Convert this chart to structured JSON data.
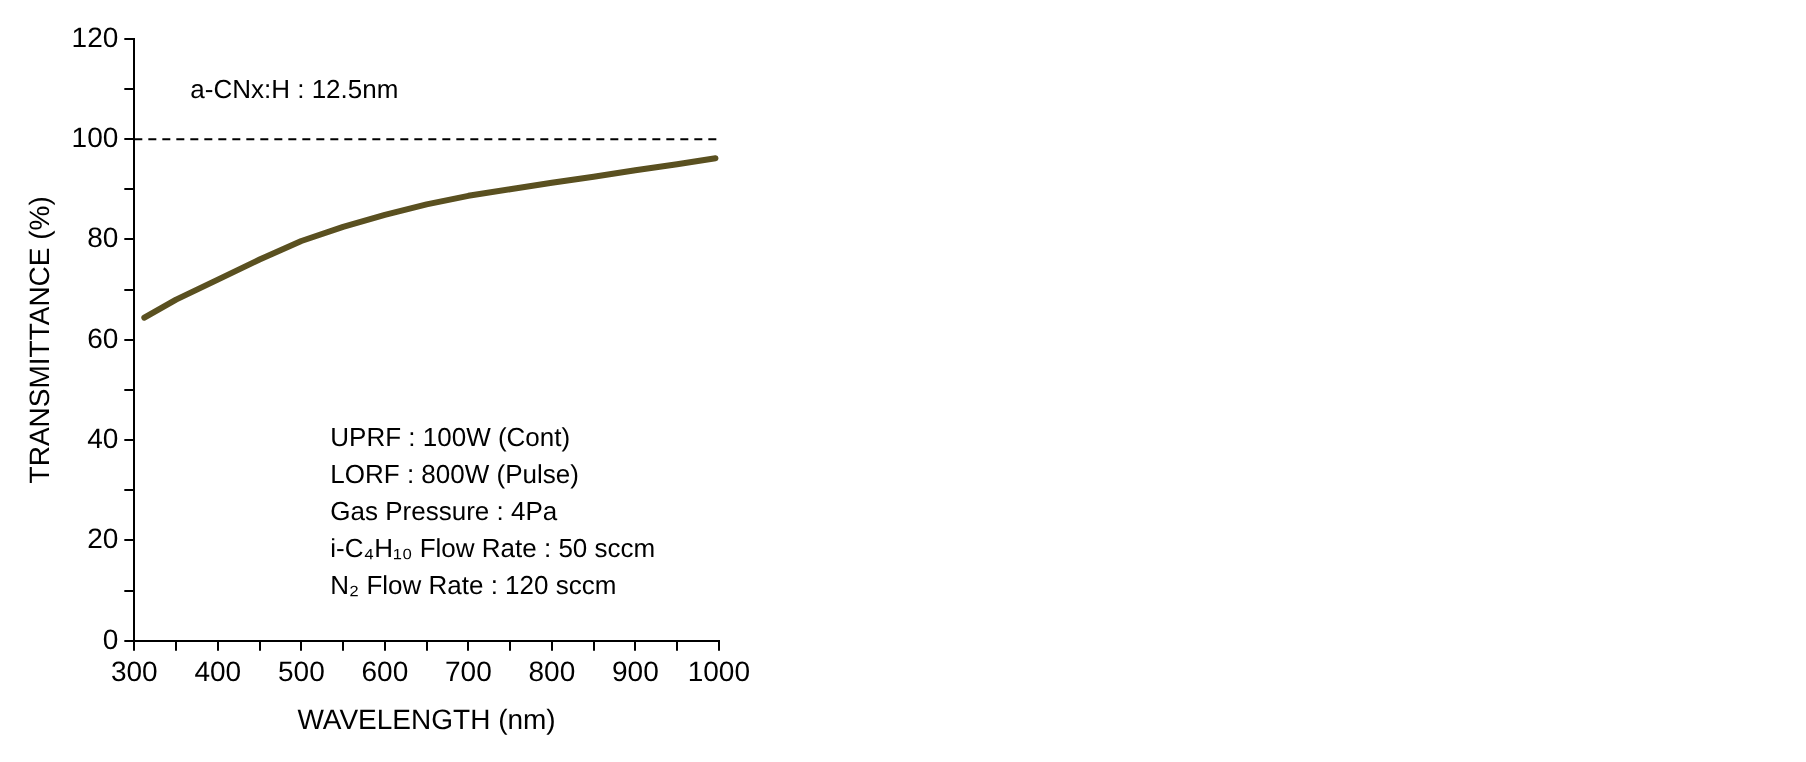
{
  "chart_data": {
    "type": "line",
    "xlabel": "WAVELENGTH (nm)",
    "ylabel": "TRANSMITTANCE (%)",
    "x": [
      312,
      350,
      400,
      450,
      500,
      550,
      600,
      650,
      700,
      750,
      800,
      850,
      900,
      950,
      996
    ],
    "series": [
      {
        "color": "#5a5020",
        "values": [
          64.4,
          68,
          72,
          76,
          79.7,
          82.5,
          84.9,
          87,
          88.7,
          90,
          91.3,
          92.5,
          93.8,
          95,
          96.2
        ]
      }
    ],
    "xlim": [
      300,
      1000
    ],
    "xticks": [
      300,
      {
        "value": 350,
        "label": null
      },
      400,
      {
        "value": 450,
        "label": null
      },
      500,
      {
        "value": 550,
        "label": null
      },
      600,
      {
        "value": 650,
        "label": null
      },
      700,
      {
        "value": 750,
        "label": null
      },
      800,
      {
        "value": 850,
        "label": null
      },
      900,
      {
        "value": 950,
        "label": null
      },
      1000
    ],
    "ylim": [
      0,
      120
    ],
    "yticks": [
      0,
      {
        "value": 10,
        "label": null
      },
      20,
      {
        "value": 30,
        "label": null
      },
      40,
      {
        "value": 50,
        "label": null
      },
      60,
      {
        "value": 70,
        "label": null
      },
      80,
      {
        "value": 90,
        "label": null
      },
      100,
      {
        "value": 110,
        "label": null
      },
      120
    ],
    "ref_lines": [
      {
        "axis": "y",
        "value": 100,
        "color": "#000000",
        "line_style": "dashed"
      }
    ],
    "annotations": [
      "a-CNx:H : 12.5nm",
      "UPRF : 100W (Cont)",
      "LORF : 800W (Pulse)",
      "Gas Pressure : 4Pa",
      "i-C₄H₁₀ Flow Rate : 50 sccm",
      "N₂ Flow Rate : 120 sccm"
    ],
    "grid": false,
    "legend": false,
    "marker": "none",
    "line_style": "solid"
  }
}
